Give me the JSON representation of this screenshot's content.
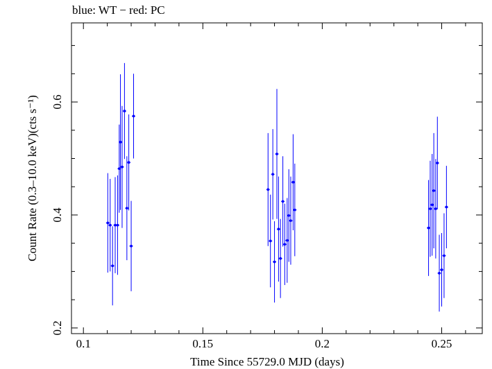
{
  "chart_data": {
    "type": "scatter",
    "title": "blue: WT − red: PC",
    "xlabel": "Time Since 55729.0 MJD (days)",
    "ylabel": "Count Rate (0.3–10.0 keV)(cts s⁻¹)",
    "xlim": [
      0.095,
      0.267
    ],
    "ylim": [
      0.19,
      0.74
    ],
    "xticks": [
      0.1,
      0.15,
      0.2,
      0.25
    ],
    "xtick_labels": [
      "0.1",
      "0.15",
      "0.2",
      "0.25"
    ],
    "yticks": [
      0.2,
      0.4,
      0.6
    ],
    "ytick_labels": [
      "0.2",
      "0.4",
      "0.6"
    ],
    "grid": false,
    "color": "#0000ff",
    "series": [
      {
        "points": [
          {
            "x": 0.1102,
            "y": 0.386,
            "err": 0.088
          },
          {
            "x": 0.1112,
            "y": 0.382,
            "err": 0.082
          },
          {
            "x": 0.1122,
            "y": 0.31,
            "err": 0.07
          },
          {
            "x": 0.1133,
            "y": 0.382,
            "err": 0.085
          },
          {
            "x": 0.1143,
            "y": 0.382,
            "err": 0.088
          },
          {
            "x": 0.115,
            "y": 0.482,
            "err": 0.078
          },
          {
            "x": 0.1155,
            "y": 0.529,
            "err": 0.12
          },
          {
            "x": 0.1162,
            "y": 0.485,
            "err": 0.108
          },
          {
            "x": 0.1172,
            "y": 0.584,
            "err": 0.085
          },
          {
            "x": 0.1182,
            "y": 0.412,
            "err": 0.092
          },
          {
            "x": 0.119,
            "y": 0.493,
            "err": 0.085
          },
          {
            "x": 0.12,
            "y": 0.345,
            "err": 0.08
          },
          {
            "x": 0.121,
            "y": 0.575,
            "err": 0.075
          },
          {
            "x": 0.1773,
            "y": 0.445,
            "err": 0.1
          },
          {
            "x": 0.1783,
            "y": 0.354,
            "err": 0.082
          },
          {
            "x": 0.1793,
            "y": 0.472,
            "err": 0.08
          },
          {
            "x": 0.18,
            "y": 0.317,
            "err": 0.072
          },
          {
            "x": 0.181,
            "y": 0.508,
            "err": 0.115
          },
          {
            "x": 0.1817,
            "y": 0.375,
            "err": 0.093
          },
          {
            "x": 0.1825,
            "y": 0.323,
            "err": 0.07
          },
          {
            "x": 0.1835,
            "y": 0.424,
            "err": 0.08
          },
          {
            "x": 0.1843,
            "y": 0.348,
            "err": 0.072
          },
          {
            "x": 0.1853,
            "y": 0.355,
            "err": 0.075
          },
          {
            "x": 0.186,
            "y": 0.399,
            "err": 0.082
          },
          {
            "x": 0.1868,
            "y": 0.39,
            "err": 0.078
          },
          {
            "x": 0.1878,
            "y": 0.458,
            "err": 0.085
          },
          {
            "x": 0.1885,
            "y": 0.409,
            "err": 0.082
          },
          {
            "x": 0.2445,
            "y": 0.377,
            "err": 0.085
          },
          {
            "x": 0.2452,
            "y": 0.411,
            "err": 0.085
          },
          {
            "x": 0.246,
            "y": 0.418,
            "err": 0.09
          },
          {
            "x": 0.2467,
            "y": 0.443,
            "err": 0.102
          },
          {
            "x": 0.2475,
            "y": 0.411,
            "err": 0.088
          },
          {
            "x": 0.2482,
            "y": 0.492,
            "err": 0.082
          },
          {
            "x": 0.249,
            "y": 0.297,
            "err": 0.068
          },
          {
            "x": 0.25,
            "y": 0.303,
            "err": 0.065
          },
          {
            "x": 0.251,
            "y": 0.328,
            "err": 0.075
          },
          {
            "x": 0.252,
            "y": 0.414,
            "err": 0.073
          }
        ]
      }
    ]
  }
}
